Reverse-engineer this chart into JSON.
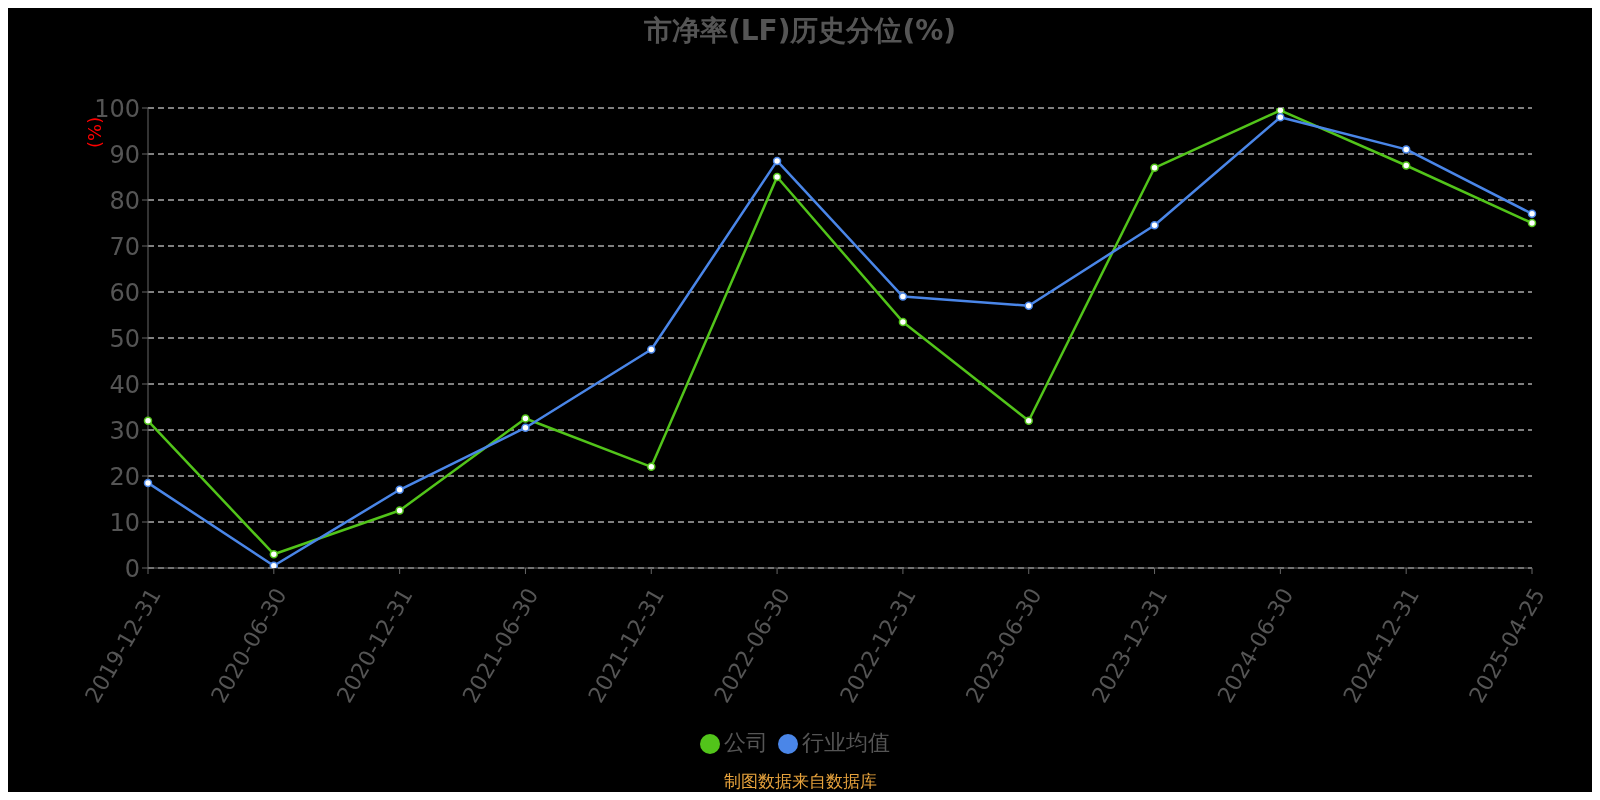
{
  "chart_data": {
    "type": "line",
    "title": "市净率(LF)历史分位(%)",
    "ylabel": "(%)",
    "annotations": [
      "制图数据来自数据库"
    ],
    "categories": [
      "2019-12-31",
      "2020-06-30",
      "2020-12-31",
      "2021-06-30",
      "2021-12-31",
      "2022-06-30",
      "2022-12-31",
      "2023-06-30",
      "2023-12-31",
      "2024-06-30",
      "2024-12-31",
      "2025-04-25"
    ],
    "series": [
      {
        "name": "公司",
        "color": "#52c41a",
        "values": [
          32,
          3,
          12.5,
          32.5,
          22,
          85,
          53.5,
          32,
          87,
          99.5,
          87.5,
          75
        ]
      },
      {
        "name": "行业均值",
        "color": "#4a86e8",
        "values": [
          18.5,
          0.5,
          17,
          30.5,
          47.5,
          88.5,
          59,
          57,
          74.5,
          98,
          91,
          77
        ]
      }
    ],
    "ylim": [
      0,
      100
    ],
    "yticks": [
      0,
      10,
      20,
      30,
      40,
      50,
      60,
      70,
      80,
      90,
      100
    ],
    "grid": "y",
    "legend": "bottom",
    "marker": "circle",
    "line_style": "solid"
  }
}
